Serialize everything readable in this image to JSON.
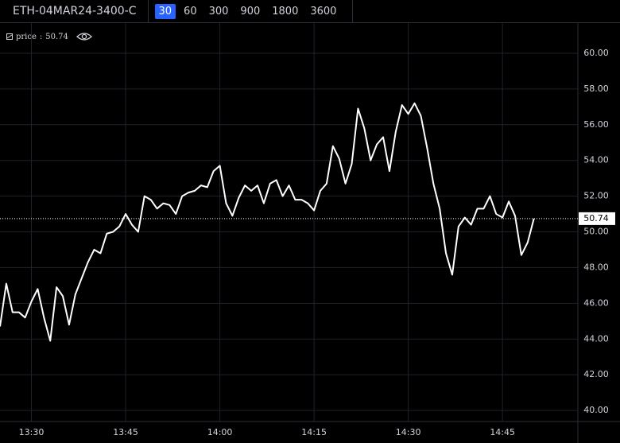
{
  "toolbar": {
    "symbol": "ETH-04MAR24-3400-C",
    "intervals": [
      "30",
      "60",
      "300",
      "900",
      "1800",
      "3600"
    ],
    "selected": 0
  },
  "chart_data": {
    "type": "line",
    "x": [
      "13:25",
      "13:26",
      "13:27",
      "13:28",
      "13:29",
      "13:30",
      "13:31",
      "13:32",
      "13:33",
      "13:34",
      "13:35",
      "13:36",
      "13:37",
      "13:38",
      "13:39",
      "13:40",
      "13:41",
      "13:42",
      "13:43",
      "13:44",
      "13:45",
      "13:46",
      "13:47",
      "13:48",
      "13:49",
      "13:50",
      "13:51",
      "13:52",
      "13:53",
      "13:54",
      "13:55",
      "13:56",
      "13:57",
      "13:58",
      "13:59",
      "14:00",
      "14:01",
      "14:02",
      "14:03",
      "14:04",
      "14:05",
      "14:06",
      "14:07",
      "14:08",
      "14:09",
      "14:10",
      "14:11",
      "14:12",
      "14:13",
      "14:14",
      "14:15",
      "14:16",
      "14:17",
      "14:18",
      "14:19",
      "14:20",
      "14:21",
      "14:22",
      "14:23",
      "14:24",
      "14:25",
      "14:26",
      "14:27",
      "14:28",
      "14:29",
      "14:30",
      "14:31",
      "14:32",
      "14:33",
      "14:34",
      "14:35",
      "14:36",
      "14:37",
      "14:38",
      "14:39",
      "14:40",
      "14:41",
      "14:42",
      "14:43",
      "14:44",
      "14:45",
      "14:46",
      "14:47",
      "14:48",
      "14:49",
      "14:50"
    ],
    "series": [
      {
        "name": "price",
        "color": "#ffffff",
        "values": [
          44.7,
          47.1,
          45.5,
          45.5,
          45.2,
          46.1,
          46.8,
          45.2,
          43.9,
          46.9,
          46.4,
          44.8,
          46.5,
          47.4,
          48.3,
          49.0,
          48.8,
          49.9,
          50.0,
          50.3,
          51.0,
          50.4,
          50.0,
          52.0,
          51.8,
          51.3,
          51.6,
          51.5,
          51.0,
          52.0,
          52.2,
          52.3,
          52.6,
          52.5,
          53.4,
          53.7,
          51.6,
          50.9,
          51.9,
          52.6,
          52.3,
          52.6,
          51.6,
          52.7,
          52.9,
          52.0,
          52.6,
          51.8,
          51.8,
          51.6,
          51.2,
          52.3,
          52.7,
          54.8,
          54.1,
          52.7,
          53.8,
          56.9,
          55.8,
          54.0,
          54.9,
          55.3,
          53.4,
          55.6,
          57.1,
          56.6,
          57.2,
          56.5,
          54.7,
          52.7,
          51.3,
          48.8,
          47.6,
          50.3,
          50.8,
          50.4,
          51.3,
          51.3,
          52.0,
          51.0,
          50.8,
          51.7,
          50.9,
          48.7,
          49.4,
          50.74
        ]
      }
    ],
    "xlim": [
      "13:25",
      "14:57"
    ],
    "xticks": [
      "13:30",
      "13:45",
      "14:00",
      "14:15",
      "14:30",
      "14:45"
    ],
    "ylim": [
      39.38,
      61.69
    ],
    "yticks": [
      {
        "value": 40,
        "label": "40.00"
      },
      {
        "value": 42,
        "label": "42.00"
      },
      {
        "value": 44,
        "label": "44.00"
      },
      {
        "value": 46,
        "label": "46.00"
      },
      {
        "value": 48,
        "label": "48.00"
      },
      {
        "value": 50,
        "label": "50.00"
      },
      {
        "value": 52,
        "label": "52.00"
      },
      {
        "value": 54,
        "label": "54.00"
      },
      {
        "value": 56,
        "label": "56.00"
      },
      {
        "value": 58,
        "label": "58.00"
      },
      {
        "value": 60,
        "label": "60.00"
      }
    ],
    "grid": true
  }
}
